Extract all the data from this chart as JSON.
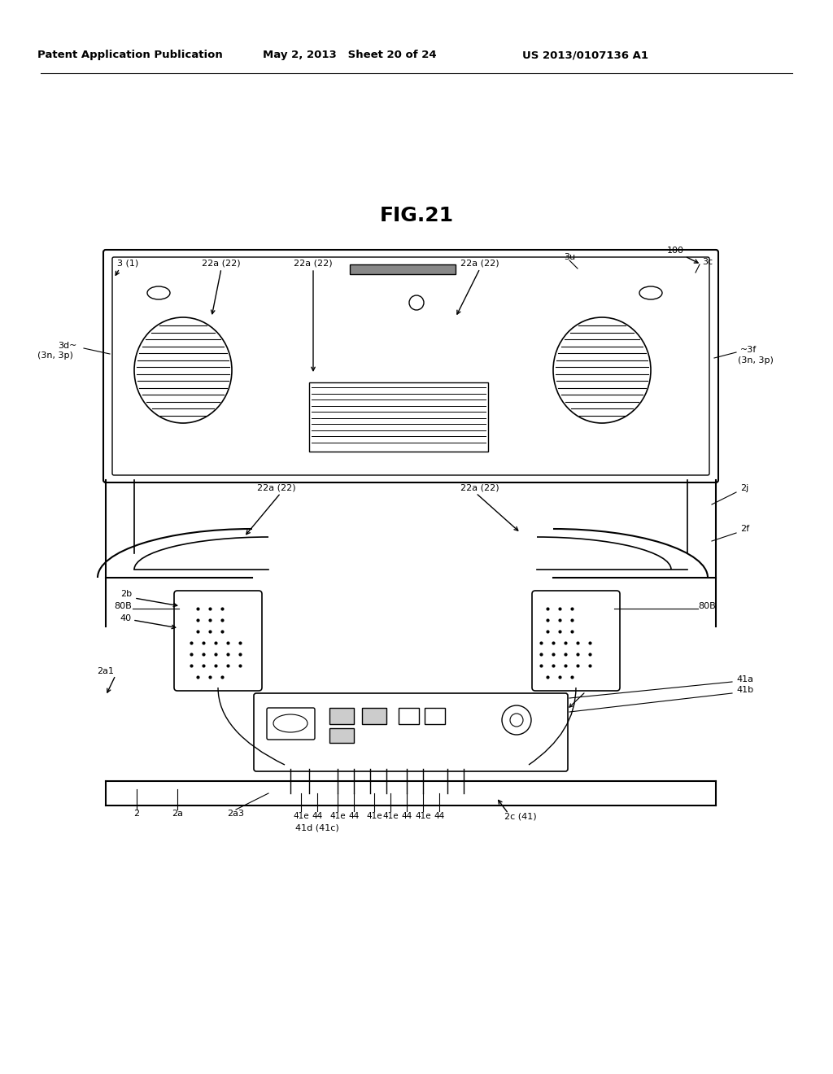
{
  "title": "FIG.21",
  "header_left": "Patent Application Publication",
  "header_mid": "May 2, 2013   Sheet 20 of 24",
  "header_right": "US 2013/0107136 A1",
  "bg_color": "#ffffff",
  "text_color": "#000000",
  "line_color": "#000000"
}
